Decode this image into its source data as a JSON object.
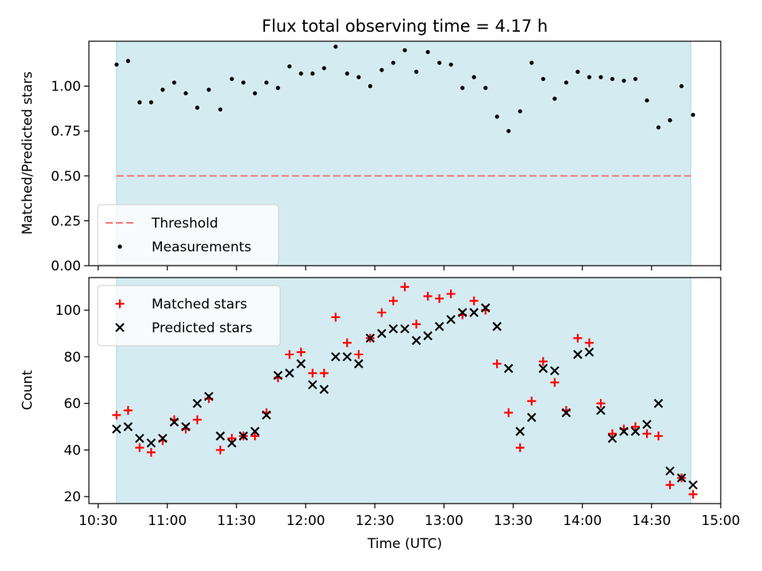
{
  "chart_data": [
    {
      "type": "scatter",
      "title": "Flux total observing time = 4.17 h",
      "xlabel": "",
      "ylabel": "Matched/Predicted stars",
      "ylim": [
        0,
        1.25
      ],
      "yticks": [
        "0.00",
        "0.25",
        "0.50",
        "0.75",
        "1.00"
      ],
      "grid": false,
      "legend_position": "lower-left",
      "shaded_span": [
        "10:38",
        "14:47"
      ],
      "threshold": {
        "name": "Threshold",
        "value": 0.5,
        "color": "#f87676",
        "style": "dashed"
      },
      "series": [
        {
          "name": "Measurements",
          "color": "#000000",
          "marker": "dot",
          "points": [
            [
              "10:38",
              1.12
            ],
            [
              "10:43",
              1.14
            ],
            [
              "10:48",
              0.91
            ],
            [
              "10:53",
              0.91
            ],
            [
              "10:58",
              0.98
            ],
            [
              "11:03",
              1.02
            ],
            [
              "11:08",
              0.96
            ],
            [
              "11:13",
              0.88
            ],
            [
              "11:18",
              0.98
            ],
            [
              "11:23",
              0.87
            ],
            [
              "11:28",
              1.04
            ],
            [
              "11:33",
              1.02
            ],
            [
              "11:38",
              0.96
            ],
            [
              "11:43",
              1.02
            ],
            [
              "11:48",
              0.99
            ],
            [
              "11:53",
              1.11
            ],
            [
              "11:58",
              1.07
            ],
            [
              "12:03",
              1.07
            ],
            [
              "12:08",
              1.1
            ],
            [
              "12:13",
              1.22
            ],
            [
              "12:18",
              1.07
            ],
            [
              "12:23",
              1.05
            ],
            [
              "12:28",
              1.0
            ],
            [
              "12:33",
              1.09
            ],
            [
              "12:38",
              1.13
            ],
            [
              "12:43",
              1.2
            ],
            [
              "12:48",
              1.08
            ],
            [
              "12:53",
              1.19
            ],
            [
              "12:58",
              1.13
            ],
            [
              "13:03",
              1.12
            ],
            [
              "13:08",
              0.99
            ],
            [
              "13:13",
              1.05
            ],
            [
              "13:18",
              0.99
            ],
            [
              "13:23",
              0.83
            ],
            [
              "13:28",
              0.75
            ],
            [
              "13:33",
              0.86
            ],
            [
              "13:38",
              1.13
            ],
            [
              "13:43",
              1.04
            ],
            [
              "13:48",
              0.93
            ],
            [
              "13:53",
              1.02
            ],
            [
              "13:58",
              1.08
            ],
            [
              "14:03",
              1.05
            ],
            [
              "14:08",
              1.05
            ],
            [
              "14:13",
              1.04
            ],
            [
              "14:18",
              1.03
            ],
            [
              "14:23",
              1.04
            ],
            [
              "14:28",
              0.92
            ],
            [
              "14:33",
              0.77
            ],
            [
              "14:38",
              0.81
            ],
            [
              "14:43",
              1.0
            ],
            [
              "14:48",
              0.84
            ]
          ]
        }
      ]
    },
    {
      "type": "scatter",
      "title": "",
      "xlabel": "Time (UTC)",
      "ylabel": "Count",
      "xlim": [
        "10:26",
        "15:00"
      ],
      "xticks": [
        "10:30",
        "11:00",
        "11:30",
        "12:00",
        "12:30",
        "13:00",
        "13:30",
        "14:00",
        "14:30",
        "15:00"
      ],
      "ylim": [
        17,
        114
      ],
      "yticks": [
        "20",
        "40",
        "60",
        "80",
        "100"
      ],
      "grid": false,
      "legend_position": "upper-left",
      "shaded_span": [
        "10:38",
        "14:47"
      ],
      "series": [
        {
          "name": "Matched stars",
          "color": "#ff0000",
          "marker": "plus",
          "points": [
            [
              "10:38",
              55
            ],
            [
              "10:43",
              57
            ],
            [
              "10:48",
              41
            ],
            [
              "10:53",
              39
            ],
            [
              "10:58",
              44
            ],
            [
              "11:03",
              53
            ],
            [
              "11:08",
              49
            ],
            [
              "11:13",
              53
            ],
            [
              "11:18",
              62
            ],
            [
              "11:23",
              40
            ],
            [
              "11:28",
              45
            ],
            [
              "11:33",
              46
            ],
            [
              "11:38",
              46
            ],
            [
              "11:43",
              56
            ],
            [
              "11:48",
              71
            ],
            [
              "11:53",
              81
            ],
            [
              "11:58",
              82
            ],
            [
              "12:03",
              73
            ],
            [
              "12:08",
              73
            ],
            [
              "12:13",
              97
            ],
            [
              "12:18",
              86
            ],
            [
              "12:23",
              81
            ],
            [
              "12:28",
              88
            ],
            [
              "12:33",
              99
            ],
            [
              "12:38",
              104
            ],
            [
              "12:43",
              110
            ],
            [
              "12:48",
              94
            ],
            [
              "12:53",
              106
            ],
            [
              "12:58",
              105
            ],
            [
              "13:03",
              107
            ],
            [
              "13:08",
              98
            ],
            [
              "13:13",
              104
            ],
            [
              "13:18",
              100
            ],
            [
              "13:23",
              77
            ],
            [
              "13:28",
              56
            ],
            [
              "13:33",
              41
            ],
            [
              "13:38",
              61
            ],
            [
              "13:43",
              78
            ],
            [
              "13:48",
              69
            ],
            [
              "13:53",
              57
            ],
            [
              "13:58",
              88
            ],
            [
              "14:03",
              86
            ],
            [
              "14:08",
              60
            ],
            [
              "14:13",
              47
            ],
            [
              "14:18",
              49
            ],
            [
              "14:23",
              50
            ],
            [
              "14:28",
              47
            ],
            [
              "14:33",
              46
            ],
            [
              "14:38",
              25
            ],
            [
              "14:43",
              28
            ],
            [
              "14:48",
              21
            ]
          ]
        },
        {
          "name": "Predicted stars",
          "color": "#000000",
          "marker": "x",
          "points": [
            [
              "10:38",
              49
            ],
            [
              "10:43",
              50
            ],
            [
              "10:48",
              45
            ],
            [
              "10:53",
              43
            ],
            [
              "10:58",
              45
            ],
            [
              "11:03",
              52
            ],
            [
              "11:08",
              50
            ],
            [
              "11:13",
              60
            ],
            [
              "11:18",
              63
            ],
            [
              "11:23",
              46
            ],
            [
              "11:28",
              43
            ],
            [
              "11:33",
              46
            ],
            [
              "11:38",
              48
            ],
            [
              "11:43",
              55
            ],
            [
              "11:48",
              72
            ],
            [
              "11:53",
              73
            ],
            [
              "11:58",
              77
            ],
            [
              "12:03",
              68
            ],
            [
              "12:08",
              66
            ],
            [
              "12:13",
              80
            ],
            [
              "12:18",
              80
            ],
            [
              "12:23",
              77
            ],
            [
              "12:28",
              88
            ],
            [
              "12:33",
              90
            ],
            [
              "12:38",
              92
            ],
            [
              "12:43",
              92
            ],
            [
              "12:48",
              87
            ],
            [
              "12:53",
              89
            ],
            [
              "12:58",
              93
            ],
            [
              "13:03",
              96
            ],
            [
              "13:08",
              99
            ],
            [
              "13:13",
              99
            ],
            [
              "13:18",
              101
            ],
            [
              "13:23",
              93
            ],
            [
              "13:28",
              75
            ],
            [
              "13:33",
              48
            ],
            [
              "13:38",
              54
            ],
            [
              "13:43",
              75
            ],
            [
              "13:48",
              74
            ],
            [
              "13:53",
              56
            ],
            [
              "13:58",
              81
            ],
            [
              "14:03",
              82
            ],
            [
              "14:08",
              57
            ],
            [
              "14:13",
              45
            ],
            [
              "14:18",
              48
            ],
            [
              "14:23",
              48
            ],
            [
              "14:28",
              51
            ],
            [
              "14:33",
              60
            ],
            [
              "14:38",
              31
            ],
            [
              "14:43",
              28
            ],
            [
              "14:48",
              25
            ]
          ]
        }
      ]
    }
  ],
  "colors": {
    "shade": "#add8e6",
    "threshold": "#f87676"
  }
}
